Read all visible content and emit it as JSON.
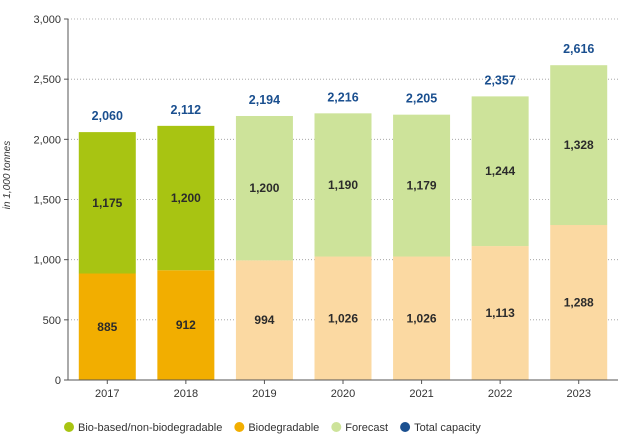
{
  "chart_data": {
    "type": "bar",
    "stacked": true,
    "categories": [
      "2017",
      "2018",
      "2019",
      "2020",
      "2021",
      "2022",
      "2023"
    ],
    "forecast_from_index": 2,
    "series": [
      {
        "name": "Biodegradable",
        "values": [
          885,
          912,
          994,
          1026,
          1026,
          1113,
          1288
        ],
        "value_labels": [
          "885",
          "912",
          "994",
          "1,026",
          "1,026",
          "1,113",
          "1,288"
        ]
      },
      {
        "name": "Bio-based/non-biodegradable",
        "values": [
          1175,
          1200,
          1200,
          1190,
          1179,
          1244,
          1328
        ],
        "value_labels": [
          "1,175",
          "1,200",
          "1,200",
          "1,190",
          "1,179",
          "1,244",
          "1,328"
        ]
      }
    ],
    "totals": {
      "name": "Total capacity",
      "values": [
        2060,
        2112,
        2194,
        2216,
        2205,
        2357,
        2616
      ],
      "value_labels": [
        "2,060",
        "2,112",
        "2,194",
        "2,216",
        "2,205",
        "2,357",
        "2,616"
      ]
    },
    "ylabel": "in 1,000 tonnes",
    "ylim": [
      0,
      3000
    ],
    "yticks": [
      0,
      500,
      1000,
      1500,
      2000,
      2500,
      3000
    ],
    "ytick_labels": [
      "0",
      "500",
      "1,000",
      "1,500",
      "2,000",
      "2,500",
      "3,000"
    ],
    "grid": "horizontal-dotted",
    "legend_position": "bottom",
    "legend": [
      {
        "label": "Bio-based/non-biodegradable",
        "color": "#a8c412"
      },
      {
        "label": "Biodegradable",
        "color": "#f2ae00"
      },
      {
        "label": "Forecast",
        "color": "#cde39a"
      },
      {
        "label": "Total capacity",
        "color": "#1a4f8f"
      }
    ],
    "colors": {
      "biodegradable": "#f2ae00",
      "bio_based": "#a8c412",
      "forecast_biodegradable": "#fbd9a2",
      "forecast_bio_based": "#cde39a",
      "total_label": "#1a4f8f"
    }
  }
}
